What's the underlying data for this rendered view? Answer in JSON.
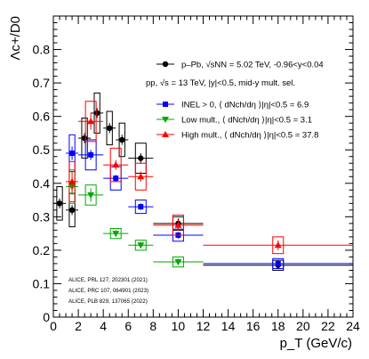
{
  "chart_data": {
    "type": "scatter",
    "xlabel": "p_T (GeV/c)",
    "ylabel": "Λc+/D0",
    "xlim": [
      0,
      24
    ],
    "ylim": [
      0,
      0.9
    ],
    "xticks": [
      0,
      2,
      4,
      6,
      8,
      10,
      12,
      14,
      16,
      18,
      20,
      22,
      24
    ],
    "yticks": [
      0,
      0.1,
      0.2,
      0.3,
      0.4,
      0.5,
      0.6,
      0.7,
      0.8
    ],
    "legend_position": "top-right",
    "legend": {
      "ppb": "p–Pb, √sNN = 5.02 TeV, -0.96<y<0.04",
      "pp_header": "pp, √s = 13 TeV, |y|<0.5, mid-y mult. sel.",
      "inel": "INEL > 0, ⟨ dNch/dη ⟩|η|<0.5 = 6.9",
      "low": "Low mult., ⟨ dNch/dη ⟩|η|<0.5 = 3.1",
      "high": "High mult., ⟨ dNch/dη ⟩|η|<0.5 = 37.8"
    },
    "references": [
      "ALICE, PRL 127, 202301 (2021)",
      "ALICE, PRC 107, 064901 (2023)",
      "ALICE, PLB 829, 137065 (2022)"
    ],
    "series": [
      {
        "name": "p–Pb, √sNN = 5.02 TeV, -0.96<y<0.04",
        "color": "#000000",
        "marker": "circle",
        "points": [
          {
            "x": 0.5,
            "y": 0.34,
            "xerr": 0.5,
            "stat": 0.015,
            "syst": 0.05
          },
          {
            "x": 1.5,
            "y": 0.32,
            "xerr": 0.5,
            "stat": 0.015,
            "syst": 0.05
          },
          {
            "x": 2.5,
            "y": 0.535,
            "xerr": 0.5,
            "stat": 0.015,
            "syst": 0.06
          },
          {
            "x": 3.5,
            "y": 0.61,
            "xerr": 0.5,
            "stat": 0.015,
            "syst": 0.06
          },
          {
            "x": 4.5,
            "y": 0.565,
            "xerr": 0.5,
            "stat": 0.015,
            "syst": 0.05
          },
          {
            "x": 5.5,
            "y": 0.53,
            "xerr": 0.5,
            "stat": 0.015,
            "syst": 0.05
          },
          {
            "x": 7,
            "y": 0.475,
            "xerr": 1,
            "stat": 0.015,
            "syst": 0.045
          },
          {
            "x": 10,
            "y": 0.28,
            "xerr": 2,
            "stat": 0.015,
            "syst": 0.02
          },
          {
            "x": 18,
            "y": 0.155,
            "xerr": 6,
            "stat": 0.01,
            "syst": 0.015
          }
        ]
      },
      {
        "name": "INEL > 0, ⟨ dNch/dη ⟩|η|<0.5 = 6.9",
        "color": "#0000ff",
        "marker": "square",
        "points": [
          {
            "x": 1.5,
            "y": 0.49,
            "xerr": 0.5,
            "stat": 0.02,
            "syst": 0.055
          },
          {
            "x": 3,
            "y": 0.485,
            "xerr": 1,
            "stat": 0.015,
            "syst": 0.045
          },
          {
            "x": 5,
            "y": 0.415,
            "xerr": 1,
            "stat": 0.01,
            "syst": 0.035
          },
          {
            "x": 7,
            "y": 0.33,
            "xerr": 1,
            "stat": 0.01,
            "syst": 0.02
          },
          {
            "x": 10,
            "y": 0.245,
            "xerr": 2,
            "stat": 0.01,
            "syst": 0.018
          },
          {
            "x": 18,
            "y": 0.16,
            "xerr": 6,
            "stat": 0.01,
            "syst": 0.015
          }
        ]
      },
      {
        "name": "Low mult., ⟨ dNch/dη ⟩|η|<0.5 = 3.1",
        "color": "#00aa00",
        "marker": "triangle-down",
        "points": [
          {
            "x": 1.5,
            "y": 0.39,
            "xerr": 0.5,
            "stat": 0.025,
            "syst": 0.05
          },
          {
            "x": 3,
            "y": 0.365,
            "xerr": 1,
            "stat": 0.02,
            "syst": 0.03
          },
          {
            "x": 5,
            "y": 0.25,
            "xerr": 1,
            "stat": 0.01,
            "syst": 0.015
          },
          {
            "x": 7,
            "y": 0.215,
            "xerr": 1,
            "stat": 0.01,
            "syst": 0.015
          },
          {
            "x": 10,
            "y": 0.165,
            "xerr": 2,
            "stat": 0.01,
            "syst": 0.015
          }
        ]
      },
      {
        "name": "High mult., ⟨ dNch/dη ⟩|η|<0.5 = 37.8",
        "color": "#ff0000",
        "marker": "triangle-up",
        "points": [
          {
            "x": 1.5,
            "y": 0.405,
            "xerr": 0.5,
            "stat": 0.03,
            "syst": 0.06
          },
          {
            "x": 3,
            "y": 0.585,
            "xerr": 1,
            "stat": 0.025,
            "syst": 0.06
          },
          {
            "x": 5,
            "y": 0.455,
            "xerr": 1,
            "stat": 0.015,
            "syst": 0.05
          },
          {
            "x": 7,
            "y": 0.42,
            "xerr": 1,
            "stat": 0.015,
            "syst": 0.04
          },
          {
            "x": 10,
            "y": 0.275,
            "xerr": 2,
            "stat": 0.015,
            "syst": 0.03
          },
          {
            "x": 18,
            "y": 0.215,
            "xerr": 6,
            "stat": 0.015,
            "syst": 0.025
          }
        ]
      }
    ]
  }
}
